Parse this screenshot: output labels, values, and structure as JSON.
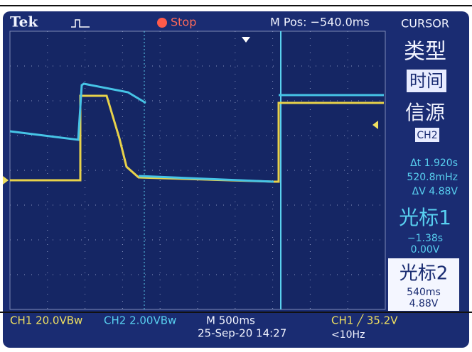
{
  "header": {
    "brand": "Tek",
    "state": "Stop",
    "position": "M Pos: −540.0ms"
  },
  "menu": {
    "title": "CURSOR",
    "type_label": "类型",
    "type_value": "时间",
    "source_label": "信源",
    "source_value": "CH2",
    "delta_t": "Δt 1.920s",
    "inverse_delta_t": "520.8mHz",
    "delta_v": "ΔV 4.88V",
    "cursor1": {
      "label": "光标1",
      "time": "−1.38s",
      "voltage": "0.00V"
    },
    "cursor2": {
      "label": "光标2",
      "time": "540ms",
      "voltage": "4.88V"
    }
  },
  "status": {
    "ch1": "CH1  20.0VBw",
    "ch2": "CH2  2.00VBw",
    "timebase": "M 500ms",
    "datetime": "25-Sep-20 14:27",
    "trigger": "CH1 ╱ 35.2V",
    "frequency": "<10Hz"
  }
}
